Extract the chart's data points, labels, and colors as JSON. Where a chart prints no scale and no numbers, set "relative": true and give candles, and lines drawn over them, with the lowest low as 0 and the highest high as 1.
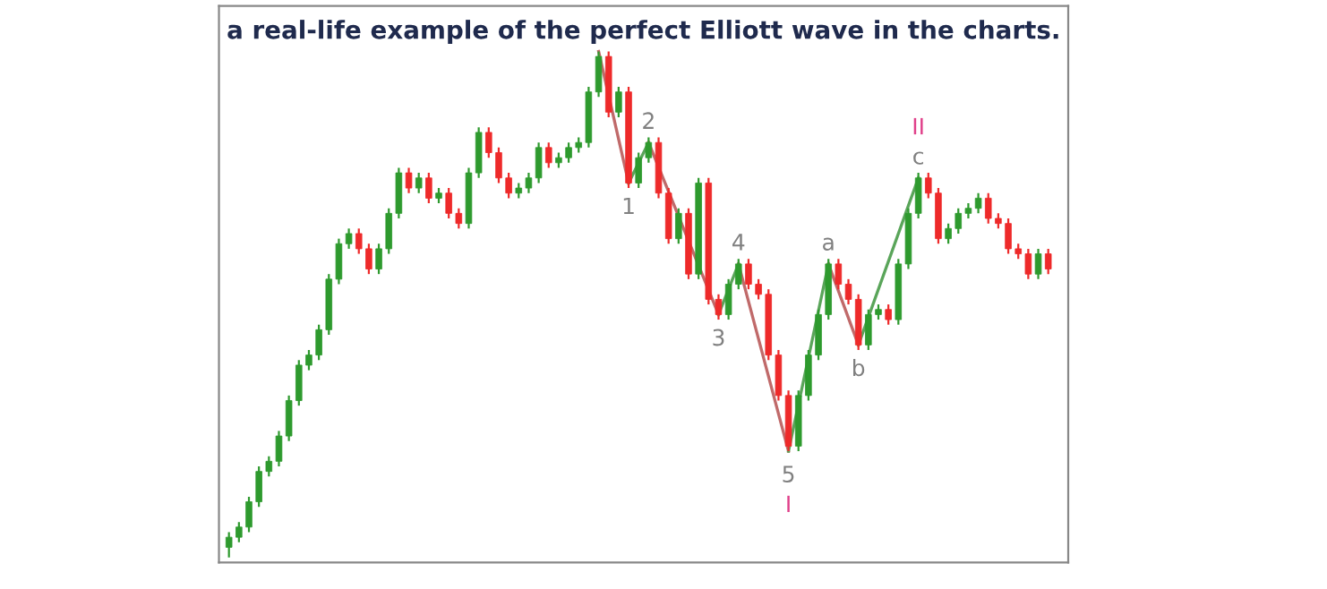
{
  "chart_data": {
    "type": "candlestick",
    "title": "a real-life example of the perfect Elliott wave in the charts.",
    "relative": true,
    "categories": [
      null,
      null,
      null,
      null,
      null,
      null,
      null,
      null,
      null,
      null,
      null,
      null,
      null,
      null,
      null,
      null,
      null,
      null,
      null,
      null,
      null,
      null,
      null,
      null,
      null,
      null,
      null,
      null,
      null,
      null,
      null,
      null,
      null,
      null,
      null,
      null,
      null,
      null,
      null,
      null,
      null,
      null,
      null,
      null,
      null,
      null,
      null,
      null,
      null,
      null,
      null,
      null,
      null,
      null,
      null,
      null,
      null,
      null,
      null,
      null,
      null,
      null,
      null,
      null,
      null,
      null,
      null,
      null,
      null,
      null,
      null,
      null,
      null,
      null,
      null,
      null,
      null,
      null,
      null,
      null,
      null,
      null,
      null
    ],
    "ohlc": [
      [
        0.02,
        0.05,
        0.0,
        0.04
      ],
      [
        0.04,
        0.07,
        0.03,
        0.06
      ],
      [
        0.06,
        0.12,
        0.05,
        0.11
      ],
      [
        0.11,
        0.18,
        0.1,
        0.17
      ],
      [
        0.17,
        0.2,
        0.16,
        0.19
      ],
      [
        0.19,
        0.25,
        0.18,
        0.24
      ],
      [
        0.24,
        0.32,
        0.23,
        0.31
      ],
      [
        0.31,
        0.39,
        0.3,
        0.38
      ],
      [
        0.38,
        0.41,
        0.37,
        0.4
      ],
      [
        0.4,
        0.46,
        0.39,
        0.45
      ],
      [
        0.45,
        0.56,
        0.44,
        0.55
      ],
      [
        0.55,
        0.63,
        0.54,
        0.62
      ],
      [
        0.62,
        0.65,
        0.61,
        0.64
      ],
      [
        0.64,
        0.65,
        0.6,
        0.61
      ],
      [
        0.61,
        0.62,
        0.56,
        0.57
      ],
      [
        0.57,
        0.62,
        0.56,
        0.61
      ],
      [
        0.61,
        0.69,
        0.6,
        0.68
      ],
      [
        0.68,
        0.77,
        0.67,
        0.76
      ],
      [
        0.76,
        0.77,
        0.72,
        0.73
      ],
      [
        0.73,
        0.76,
        0.72,
        0.75
      ],
      [
        0.75,
        0.76,
        0.7,
        0.71
      ],
      [
        0.71,
        0.73,
        0.7,
        0.72
      ],
      [
        0.72,
        0.73,
        0.67,
        0.68
      ],
      [
        0.68,
        0.69,
        0.65,
        0.66
      ],
      [
        0.66,
        0.77,
        0.65,
        0.76
      ],
      [
        0.76,
        0.85,
        0.75,
        0.84
      ],
      [
        0.84,
        0.85,
        0.79,
        0.8
      ],
      [
        0.8,
        0.81,
        0.74,
        0.75
      ],
      [
        0.75,
        0.76,
        0.71,
        0.72
      ],
      [
        0.72,
        0.74,
        0.71,
        0.73
      ],
      [
        0.73,
        0.76,
        0.72,
        0.75
      ],
      [
        0.75,
        0.82,
        0.74,
        0.81
      ],
      [
        0.81,
        0.82,
        0.77,
        0.78
      ],
      [
        0.78,
        0.8,
        0.77,
        0.79
      ],
      [
        0.79,
        0.82,
        0.78,
        0.81
      ],
      [
        0.81,
        0.83,
        0.8,
        0.82
      ],
      [
        0.82,
        0.93,
        0.81,
        0.92
      ],
      [
        0.92,
        1.0,
        0.91,
        0.99
      ],
      [
        0.99,
        1.0,
        0.87,
        0.88
      ],
      [
        0.88,
        0.93,
        0.87,
        0.92
      ],
      [
        0.92,
        0.93,
        0.73,
        0.74
      ],
      [
        0.74,
        0.8,
        0.73,
        0.79
      ],
      [
        0.79,
        0.83,
        0.78,
        0.82
      ],
      [
        0.82,
        0.83,
        0.71,
        0.72
      ],
      [
        0.72,
        0.73,
        0.62,
        0.63
      ],
      [
        0.63,
        0.69,
        0.62,
        0.68
      ],
      [
        0.68,
        0.69,
        0.55,
        0.56
      ],
      [
        0.56,
        0.75,
        0.55,
        0.74
      ],
      [
        0.74,
        0.75,
        0.5,
        0.51
      ],
      [
        0.51,
        0.52,
        0.47,
        0.48
      ],
      [
        0.48,
        0.55,
        0.47,
        0.54
      ],
      [
        0.54,
        0.59,
        0.53,
        0.58
      ],
      [
        0.58,
        0.59,
        0.53,
        0.54
      ],
      [
        0.54,
        0.55,
        0.51,
        0.52
      ],
      [
        0.52,
        0.53,
        0.39,
        0.4
      ],
      [
        0.4,
        0.41,
        0.31,
        0.32
      ],
      [
        0.32,
        0.33,
        0.21,
        0.22
      ],
      [
        0.22,
        0.33,
        0.21,
        0.32
      ],
      [
        0.32,
        0.41,
        0.31,
        0.4
      ],
      [
        0.4,
        0.49,
        0.39,
        0.48
      ],
      [
        0.48,
        0.59,
        0.47,
        0.58
      ],
      [
        0.58,
        0.59,
        0.53,
        0.54
      ],
      [
        0.54,
        0.55,
        0.5,
        0.51
      ],
      [
        0.51,
        0.52,
        0.41,
        0.42
      ],
      [
        0.42,
        0.49,
        0.41,
        0.48
      ],
      [
        0.48,
        0.5,
        0.47,
        0.49
      ],
      [
        0.49,
        0.5,
        0.46,
        0.47
      ],
      [
        0.47,
        0.59,
        0.46,
        0.58
      ],
      [
        0.58,
        0.69,
        0.57,
        0.68
      ],
      [
        0.68,
        0.76,
        0.67,
        0.75
      ],
      [
        0.75,
        0.76,
        0.71,
        0.72
      ],
      [
        0.72,
        0.73,
        0.62,
        0.63
      ],
      [
        0.63,
        0.66,
        0.62,
        0.65
      ],
      [
        0.65,
        0.69,
        0.64,
        0.68
      ],
      [
        0.68,
        0.7,
        0.67,
        0.69
      ],
      [
        0.69,
        0.72,
        0.68,
        0.71
      ],
      [
        0.71,
        0.72,
        0.66,
        0.67
      ],
      [
        0.67,
        0.68,
        0.65,
        0.66
      ],
      [
        0.66,
        0.67,
        0.6,
        0.61
      ],
      [
        0.61,
        0.62,
        0.59,
        0.6
      ],
      [
        0.6,
        0.61,
        0.55,
        0.56
      ],
      [
        0.56,
        0.61,
        0.55,
        0.6
      ],
      [
        0.6,
        0.61,
        0.56,
        0.57
      ]
    ],
    "colors": [
      "#2e9a2e",
      "#2e9a2e",
      "#2e9a2e",
      "#2e9a2e",
      "#2e9a2e",
      "#2e9a2e",
      "#2e9a2e",
      "#2e9a2e",
      "#2e9a2e",
      "#2e9a2e",
      "#2e9a2e",
      "#2e9a2e",
      "#2e9a2e",
      "#ee2a2a",
      "#ee2a2a",
      "#2e9a2e",
      "#2e9a2e",
      "#2e9a2e",
      "#ee2a2a",
      "#2e9a2e",
      "#ee2a2a",
      "#2e9a2e",
      "#ee2a2a",
      "#ee2a2a",
      "#2e9a2e",
      "#2e9a2e",
      "#ee2a2a",
      "#ee2a2a",
      "#ee2a2a",
      "#2e9a2e",
      "#2e9a2e",
      "#2e9a2e",
      "#ee2a2a",
      "#2e9a2e",
      "#2e9a2e",
      "#2e9a2e",
      "#2e9a2e",
      "#2e9a2e",
      "#ee2a2a",
      "#2e9a2e",
      "#ee2a2a",
      "#2e9a2e",
      "#2e9a2e",
      "#ee2a2a",
      "#ee2a2a",
      "#2e9a2e",
      "#ee2a2a",
      "#2e9a2e",
      "#ee2a2a",
      "#ee2a2a",
      "#2e9a2e",
      "#2e9a2e",
      "#ee2a2a",
      "#ee2a2a",
      "#ee2a2a",
      "#ee2a2a",
      "#ee2a2a",
      "#2e9a2e",
      "#2e9a2e",
      "#2e9a2e",
      "#2e9a2e",
      "#ee2a2a",
      "#ee2a2a",
      "#ee2a2a",
      "#2e9a2e",
      "#2e9a2e",
      "#ee2a2a",
      "#2e9a2e",
      "#2e9a2e",
      "#2e9a2e",
      "#ee2a2a",
      "#ee2a2a",
      "#2e9a2e",
      "#2e9a2e",
      "#2e9a2e",
      "#2e9a2e",
      "#ee2a2a",
      "#ee2a2a",
      "#ee2a2a",
      "#ee2a2a",
      "#ee2a2a",
      "#2e9a2e",
      "#ee2a2a"
    ],
    "series": [
      {
        "type": "line",
        "color": "#c06a6a",
        "values": [
          null,
          null,
          null,
          null,
          null,
          null,
          null,
          null,
          null,
          null,
          null,
          null,
          null,
          null,
          null,
          null,
          null,
          null,
          null,
          null,
          null,
          null,
          null,
          null,
          null,
          null,
          null,
          null,
          null,
          null,
          null,
          null,
          null,
          null,
          null,
          null,
          null,
          1.0,
          null,
          null,
          0.74,
          null,
          null,
          null,
          null,
          null,
          null,
          null,
          null,
          null,
          null,
          null,
          null,
          null,
          null,
          null,
          null,
          null,
          null,
          null,
          null,
          null,
          null,
          null,
          null,
          null,
          null,
          null,
          null,
          null,
          null,
          null,
          null,
          null,
          null,
          null,
          null,
          null,
          null,
          null,
          null,
          null,
          null
        ]
      },
      {
        "type": "line",
        "color": "#5aa55a",
        "values": [
          null,
          null,
          null,
          null,
          null,
          null,
          null,
          null,
          null,
          null,
          null,
          null,
          null,
          null,
          null,
          null,
          null,
          null,
          null,
          null,
          null,
          null,
          null,
          null,
          null,
          null,
          null,
          null,
          null,
          null,
          null,
          null,
          null,
          null,
          null,
          null,
          null,
          null,
          null,
          null,
          0.74,
          null,
          0.82,
          null,
          null,
          null,
          null,
          null,
          null,
          null,
          null,
          null,
          null,
          null,
          null,
          null,
          null,
          null,
          null,
          null,
          null,
          null,
          null,
          null,
          null,
          null,
          null,
          null,
          null,
          null,
          null,
          null,
          null,
          null,
          null,
          null,
          null,
          null,
          null,
          null,
          null,
          null,
          null
        ]
      },
      {
        "type": "line",
        "color": "#c06a6a",
        "values": [
          null,
          null,
          null,
          null,
          null,
          null,
          null,
          null,
          null,
          null,
          null,
          null,
          null,
          null,
          null,
          null,
          null,
          null,
          null,
          null,
          null,
          null,
          null,
          null,
          null,
          null,
          null,
          null,
          null,
          null,
          null,
          null,
          null,
          null,
          null,
          null,
          null,
          null,
          null,
          null,
          null,
          null,
          0.82,
          null,
          null,
          null,
          null,
          null,
          null,
          0.48,
          null,
          null,
          null,
          null,
          null,
          null,
          null,
          null,
          null,
          null,
          null,
          null,
          null,
          null,
          null,
          null,
          null,
          null,
          null,
          null,
          null,
          null,
          null,
          null,
          null,
          null,
          null,
          null,
          null,
          null,
          null,
          null,
          null
        ]
      },
      {
        "type": "line",
        "color": "#5aa55a",
        "values": [
          null,
          null,
          null,
          null,
          null,
          null,
          null,
          null,
          null,
          null,
          null,
          null,
          null,
          null,
          null,
          null,
          null,
          null,
          null,
          null,
          null,
          null,
          null,
          null,
          null,
          null,
          null,
          null,
          null,
          null,
          null,
          null,
          null,
          null,
          null,
          null,
          null,
          null,
          null,
          null,
          null,
          null,
          null,
          null,
          null,
          null,
          null,
          null,
          null,
          0.48,
          null,
          0.58,
          null,
          null,
          null,
          null,
          null,
          null,
          null,
          null,
          null,
          null,
          null,
          null,
          null,
          null,
          null,
          null,
          null,
          null,
          null,
          null,
          null,
          null,
          null,
          null,
          null,
          null,
          null,
          null,
          null,
          null,
          null
        ]
      },
      {
        "type": "line",
        "color": "#c06a6a",
        "values": [
          null,
          null,
          null,
          null,
          null,
          null,
          null,
          null,
          null,
          null,
          null,
          null,
          null,
          null,
          null,
          null,
          null,
          null,
          null,
          null,
          null,
          null,
          null,
          null,
          null,
          null,
          null,
          null,
          null,
          null,
          null,
          null,
          null,
          null,
          null,
          null,
          null,
          null,
          null,
          null,
          null,
          null,
          null,
          null,
          null,
          null,
          null,
          null,
          null,
          null,
          null,
          0.58,
          null,
          null,
          null,
          null,
          0.21,
          null,
          null,
          null,
          null,
          null,
          null,
          null,
          null,
          null,
          null,
          null,
          null,
          null,
          null,
          null,
          null,
          null,
          null,
          null,
          null,
          null,
          null,
          null,
          null,
          null,
          null
        ]
      },
      {
        "type": "line",
        "color": "#5aa55a",
        "values": [
          null,
          null,
          null,
          null,
          null,
          null,
          null,
          null,
          null,
          null,
          null,
          null,
          null,
          null,
          null,
          null,
          null,
          null,
          null,
          null,
          null,
          null,
          null,
          null,
          null,
          null,
          null,
          null,
          null,
          null,
          null,
          null,
          null,
          null,
          null,
          null,
          null,
          null,
          null,
          null,
          null,
          null,
          null,
          null,
          null,
          null,
          null,
          null,
          null,
          null,
          null,
          null,
          null,
          null,
          null,
          null,
          0.21,
          null,
          null,
          null,
          0.58,
          null,
          null,
          null,
          null,
          null,
          null,
          null,
          null,
          null,
          null,
          null,
          null,
          null,
          null,
          null,
          null,
          null,
          null,
          null,
          null,
          null,
          null
        ]
      },
      {
        "type": "line",
        "color": "#c06a6a",
        "values": [
          null,
          null,
          null,
          null,
          null,
          null,
          null,
          null,
          null,
          null,
          null,
          null,
          null,
          null,
          null,
          null,
          null,
          null,
          null,
          null,
          null,
          null,
          null,
          null,
          null,
          null,
          null,
          null,
          null,
          null,
          null,
          null,
          null,
          null,
          null,
          null,
          null,
          null,
          null,
          null,
          null,
          null,
          null,
          null,
          null,
          null,
          null,
          null,
          null,
          null,
          null,
          null,
          null,
          null,
          null,
          null,
          null,
          null,
          null,
          null,
          0.58,
          null,
          null,
          0.42,
          null,
          null,
          null,
          null,
          null,
          null,
          null,
          null,
          null,
          null,
          null,
          null,
          null,
          null,
          null,
          null,
          null,
          null,
          null
        ]
      },
      {
        "type": "line",
        "color": "#5aa55a",
        "values": [
          null,
          null,
          null,
          null,
          null,
          null,
          null,
          null,
          null,
          null,
          null,
          null,
          null,
          null,
          null,
          null,
          null,
          null,
          null,
          null,
          null,
          null,
          null,
          null,
          null,
          null,
          null,
          null,
          null,
          null,
          null,
          null,
          null,
          null,
          null,
          null,
          null,
          null,
          null,
          null,
          null,
          null,
          null,
          null,
          null,
          null,
          null,
          null,
          null,
          null,
          null,
          null,
          null,
          null,
          null,
          null,
          null,
          null,
          null,
          null,
          null,
          null,
          null,
          0.42,
          null,
          null,
          null,
          null,
          null,
          0.75,
          null,
          null,
          null,
          null,
          null,
          null,
          null,
          null,
          null,
          null,
          null,
          null,
          null
        ]
      }
    ],
    "annotations": [
      {
        "text": "1",
        "y": 0.74
      },
      {
        "text": "2",
        "y": 0.82
      },
      {
        "text": "3",
        "y": 0.48
      },
      {
        "text": "4",
        "y": 0.58
      },
      {
        "text": "5",
        "y": 0.21
      },
      {
        "text": "I",
        "y": 0.21
      },
      {
        "text": "a",
        "y": 0.58
      },
      {
        "text": "b",
        "y": 0.42
      },
      {
        "text": "c",
        "y": 0.75
      },
      {
        "text": "II",
        "y": 0.75
      }
    ],
    "grid": false,
    "legend": false
  }
}
